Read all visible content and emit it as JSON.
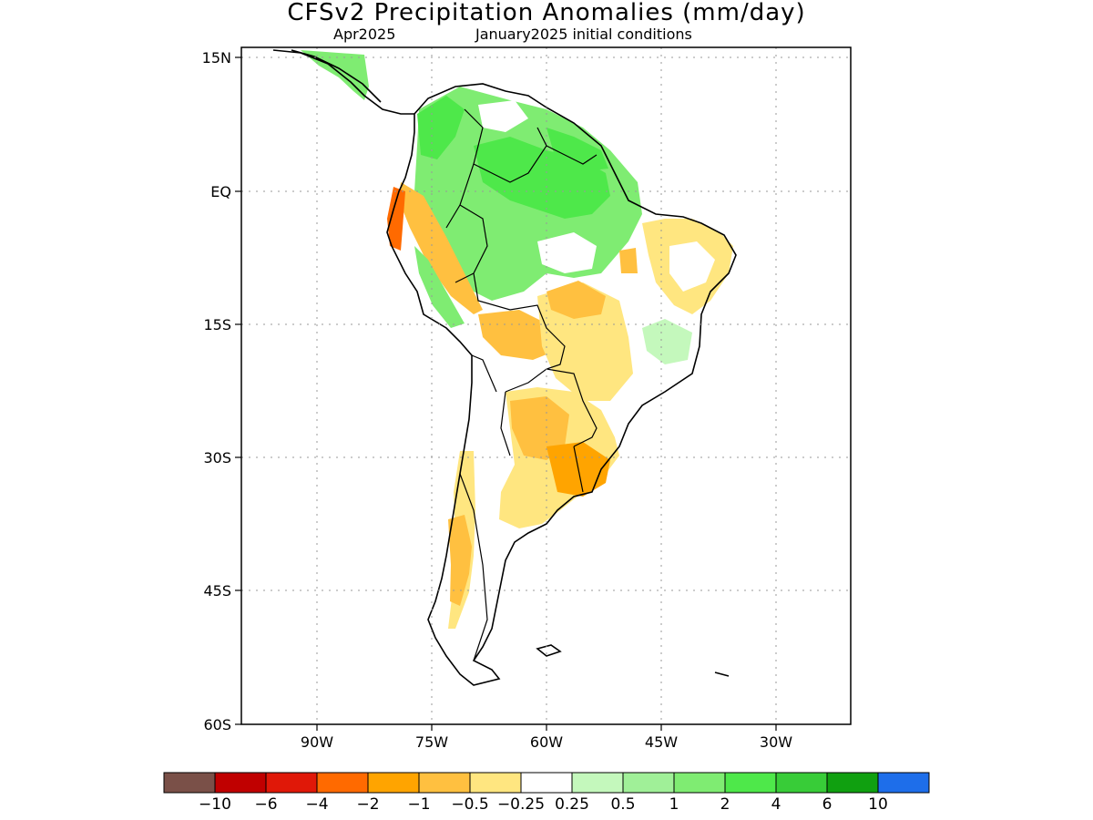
{
  "title": "CFSv2 Precipitation Anomalies (mm/day)",
  "subtitle_left": "Apr2025",
  "subtitle_right": "January2025 initial conditions",
  "map": {
    "lat_ticks": [
      "15N",
      "EQ",
      "15S",
      "30S",
      "45S",
      "60S"
    ],
    "lon_ticks": [
      "90W",
      "75W",
      "60W",
      "45W",
      "30W"
    ],
    "gridlines": true,
    "colors": {
      "wet_light": "#c4f8bc",
      "wet_mid": "#7fec72",
      "wet_strong": "#4ee84a",
      "dry_light": "#ffe680",
      "dry_mid": "#ffc040",
      "dry_strong": "#ff6a00",
      "coastline": "#000000"
    }
  },
  "legend": {
    "colors": [
      "#7a5048",
      "#c00000",
      "#e01808",
      "#ff6a00",
      "#ffa400",
      "#ffc040",
      "#ffe680",
      "#ffffff",
      "#c4f8bc",
      "#a0f098",
      "#7fec72",
      "#4ee84a",
      "#38cc38",
      "#10a010",
      "#1e6eea"
    ],
    "labels": [
      "-10",
      "-6",
      "-4",
      "-2",
      "-1",
      "-0.5",
      "-0.25",
      "0.25",
      "0.5",
      "1",
      "2",
      "4",
      "6",
      "10"
    ]
  }
}
